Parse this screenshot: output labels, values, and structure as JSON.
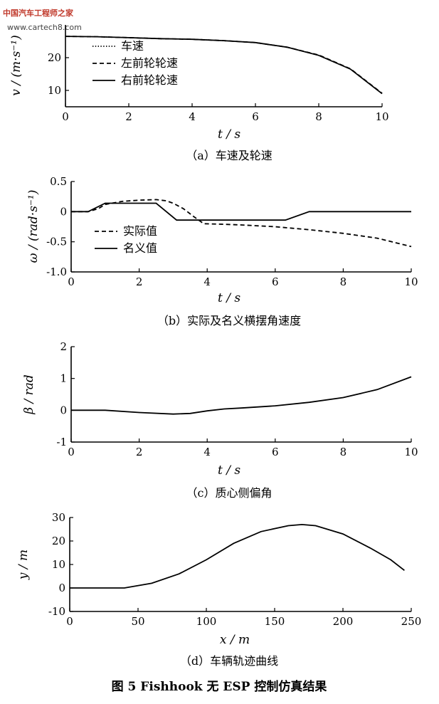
{
  "watermark": {
    "line1": "中国汽车工程师之家",
    "line2": "www.cartech8.com"
  },
  "figure_caption": "图 5  Fishhook 无 ESP 控制仿真结果",
  "chart_data": [
    {
      "type": "line",
      "caption": "（a）车速及轮速",
      "xlabel": "t / s",
      "ylabel": "v / (m·s⁻¹)",
      "xlim": [
        0,
        10
      ],
      "ylim": [
        5,
        30
      ],
      "xticks": [
        0,
        2,
        4,
        6,
        8,
        10
      ],
      "yticks": [
        10,
        20
      ],
      "legend_position": "left",
      "series": [
        {
          "name": "车速",
          "style": "dotted",
          "x": [
            0,
            1,
            2,
            3,
            4,
            5,
            6,
            7,
            8,
            9,
            10
          ],
          "y": [
            26.5,
            26.4,
            26.1,
            25.8,
            25.6,
            25.2,
            24.6,
            23.2,
            20.7,
            16.5,
            9.0
          ]
        },
        {
          "name": "左前轮轮速",
          "style": "dashed",
          "x": [
            0,
            1,
            2,
            3,
            4,
            5,
            6,
            7,
            8,
            9,
            10
          ],
          "y": [
            26.5,
            26.4,
            26.1,
            25.8,
            25.6,
            25.2,
            24.6,
            23.2,
            20.8,
            16.6,
            9.1
          ]
        },
        {
          "name": "右前轮轮速",
          "style": "solid",
          "x": [
            0,
            1,
            2,
            3,
            4,
            5,
            6,
            7,
            8,
            9,
            10
          ],
          "y": [
            26.5,
            26.4,
            26.1,
            25.8,
            25.6,
            25.2,
            24.6,
            23.2,
            20.7,
            16.5,
            9.0
          ]
        }
      ]
    },
    {
      "type": "line",
      "caption": "（b）实际及名义横摆角速度",
      "xlabel": "t / s",
      "ylabel": "ω / (rad·s⁻¹)",
      "xlim": [
        0,
        10
      ],
      "ylim": [
        -1.0,
        0.5
      ],
      "xticks": [
        0,
        2,
        4,
        6,
        8,
        10
      ],
      "yticks": [
        0.5,
        0,
        -0.5,
        -1.0
      ],
      "yticklabels": [
        "0.5",
        "0",
        "-0.5",
        "-1.0"
      ],
      "legend_position": "lower-left",
      "series": [
        {
          "name": "实际值",
          "style": "dashed",
          "x": [
            0,
            0.5,
            0.8,
            1.0,
            1.5,
            2.0,
            2.5,
            2.8,
            3.0,
            3.3,
            3.6,
            3.9,
            4.5,
            5,
            6,
            7,
            8,
            9,
            10
          ],
          "y": [
            0,
            0,
            0.05,
            0.12,
            0.17,
            0.19,
            0.2,
            0.18,
            0.14,
            0.05,
            -0.08,
            -0.2,
            -0.21,
            -0.22,
            -0.25,
            -0.3,
            -0.36,
            -0.44,
            -0.58
          ]
        },
        {
          "name": "名义值",
          "style": "solid",
          "x": [
            0,
            0.5,
            1.0,
            2.5,
            3.1,
            6.3,
            7.0,
            10
          ],
          "y": [
            0,
            0,
            0.14,
            0.14,
            -0.14,
            -0.14,
            0,
            0
          ]
        }
      ]
    },
    {
      "type": "line",
      "caption": "（c）质心侧偏角",
      "xlabel": "t / s",
      "ylabel": "β / rad",
      "xlim": [
        0,
        10
      ],
      "ylim": [
        -1,
        2
      ],
      "xticks": [
        0,
        2,
        4,
        6,
        8,
        10
      ],
      "yticks": [
        2,
        1,
        0,
        -1
      ],
      "series": [
        {
          "style": "solid",
          "x": [
            0,
            1,
            2,
            3,
            3.5,
            4,
            4.5,
            5,
            6,
            7,
            8,
            9,
            10
          ],
          "y": [
            0,
            0,
            -0.07,
            -0.12,
            -0.1,
            -0.02,
            0.04,
            0.07,
            0.14,
            0.25,
            0.4,
            0.65,
            1.05
          ]
        }
      ]
    },
    {
      "type": "line",
      "caption": "（d）车辆轨迹曲线",
      "xlabel": "x / m",
      "ylabel": "y / m",
      "xlim": [
        0,
        250
      ],
      "ylim": [
        -10,
        30
      ],
      "xticks": [
        0,
        50,
        100,
        150,
        200,
        250
      ],
      "yticks": [
        30,
        20,
        10,
        0,
        -10
      ],
      "series": [
        {
          "style": "solid",
          "x": [
            0,
            20,
            40,
            60,
            80,
            100,
            120,
            140,
            160,
            170,
            180,
            200,
            220,
            235,
            245
          ],
          "y": [
            0,
            0,
            0,
            2,
            6,
            12,
            19,
            24,
            26.5,
            27,
            26.5,
            23,
            17,
            12,
            7.5
          ]
        }
      ]
    }
  ]
}
